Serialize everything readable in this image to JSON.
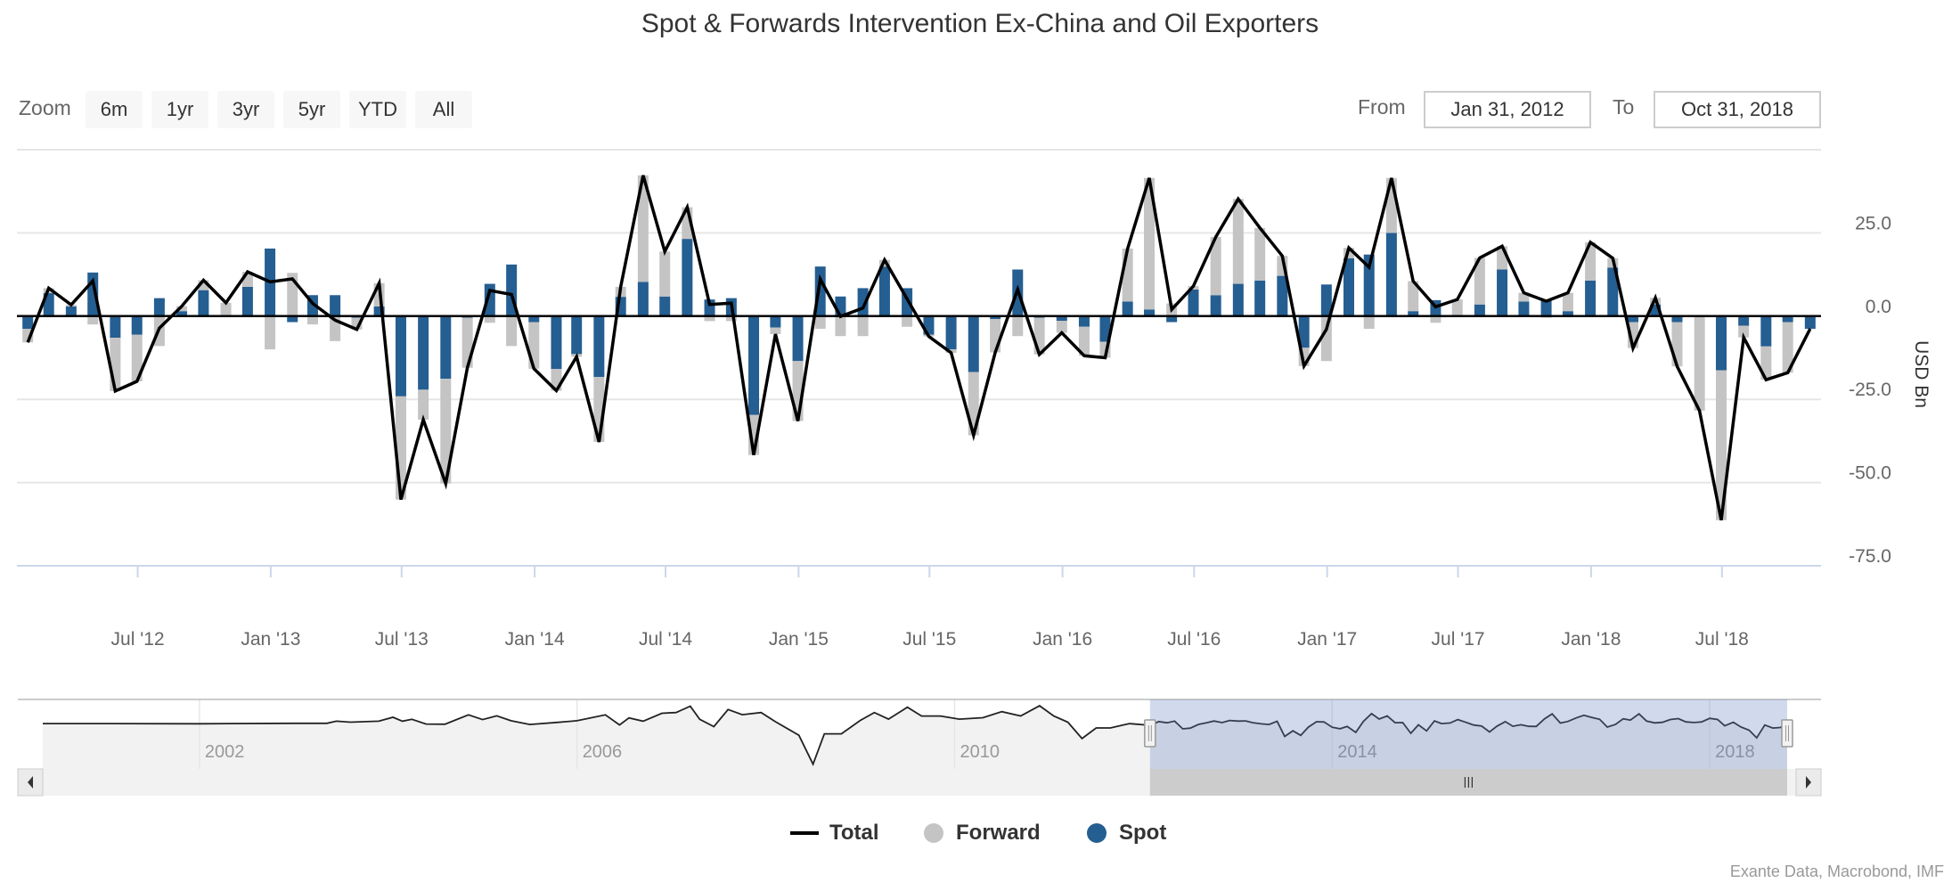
{
  "title": "Spot & Forwards Intervention Ex-China and Oil Exporters",
  "range_selector": {
    "zoom_label": "Zoom",
    "buttons": [
      "6m",
      "1yr",
      "3yr",
      "5yr",
      "YTD",
      "All"
    ],
    "from_label": "From",
    "from_value": "Jan 31, 2012",
    "to_label": "To",
    "to_value": "Oct 31, 2018"
  },
  "legend": {
    "items": [
      {
        "label": "Total",
        "symbol": "line",
        "color": "#000000"
      },
      {
        "label": "Forward",
        "symbol": "circle",
        "color": "#c4c4c4"
      },
      {
        "label": "Spot",
        "symbol": "circle",
        "color": "#255e91"
      }
    ]
  },
  "credits": "Exante Data, Macrobond, IMF",
  "chart_data": {
    "type": "stacked-column+line",
    "title": "Spot & Forwards Intervention Ex-China and Oil Exporters",
    "ylabel": "USD Bn",
    "ylim": [
      -75,
      50
    ],
    "xlim": [
      "2012-01-16",
      "2018-11-15"
    ],
    "grid": true,
    "legend_position": "bottom",
    "y_ticks": [
      {
        "value": 50,
        "label": ""
      },
      {
        "value": 25,
        "label": "25.0"
      },
      {
        "value": 0,
        "label": "0.0"
      },
      {
        "value": -25,
        "label": "-25.0"
      },
      {
        "value": -50,
        "label": "-50.0"
      },
      {
        "value": -75,
        "label": "-75.0"
      }
    ],
    "x_ticks": [
      {
        "date": "2012-07-01",
        "label": "Jul '12"
      },
      {
        "date": "2013-01-01",
        "label": "Jan '13"
      },
      {
        "date": "2013-07-01",
        "label": "Jul '13"
      },
      {
        "date": "2014-01-01",
        "label": "Jan '14"
      },
      {
        "date": "2014-07-01",
        "label": "Jul '14"
      },
      {
        "date": "2015-01-01",
        "label": "Jan '15"
      },
      {
        "date": "2015-07-01",
        "label": "Jul '15"
      },
      {
        "date": "2016-01-01",
        "label": "Jan '16"
      },
      {
        "date": "2016-07-01",
        "label": "Jul '16"
      },
      {
        "date": "2017-01-01",
        "label": "Jan '17"
      },
      {
        "date": "2017-07-01",
        "label": "Jul '17"
      },
      {
        "date": "2018-01-01",
        "label": "Jan '18"
      },
      {
        "date": "2018-07-01",
        "label": "Jul '18"
      }
    ],
    "start_month": "2012-01",
    "series": [
      {
        "name": "Spot",
        "type": "column",
        "color": "#255e91",
        "values": [
          -3.8,
          6.9,
          2.9,
          13.1,
          -6.5,
          -5.6,
          5.4,
          1.5,
          7.8,
          0,
          8.8,
          20.3,
          -1.8,
          6.3,
          6.3,
          -0.5,
          2.9,
          -24.1,
          -22.1,
          -18.8,
          -0.5,
          9.7,
          15.5,
          -1.8,
          -15.9,
          -11.4,
          -18.3,
          5.8,
          10.3,
          5.9,
          23.2,
          5.0,
          5.4,
          -29.7,
          -3.4,
          -13.5,
          14.9,
          5.9,
          8.4,
          14.9,
          8.4,
          -5.6,
          -10.0,
          -16.8,
          -0.9,
          14.0,
          -0.5,
          -1.4,
          -3.2,
          -7.7,
          4.4,
          2.0,
          -1.8,
          8.0,
          6.3,
          9.7,
          10.7,
          12.1,
          -9.5,
          9.5,
          17.4,
          18.5,
          25.0,
          1.5,
          4.8,
          0,
          3.5,
          14.0,
          4.4,
          5.0,
          1.5,
          10.7,
          14.6,
          -1.8,
          3.5,
          -1.8,
          0,
          -16.3,
          -2.9,
          -9.1,
          -1.8,
          -3.8
        ]
      },
      {
        "name": "Forward",
        "type": "column",
        "color": "#c4c4c4",
        "values": [
          -4.1,
          1.5,
          0.5,
          -2.5,
          -16.0,
          -14.0,
          -9.0,
          1.5,
          3.0,
          4.0,
          4.5,
          -10.0,
          13.0,
          -2.5,
          -7.5,
          -3.5,
          7.0,
          -31.0,
          -9.0,
          -31.5,
          -15.0,
          -2.0,
          -9.0,
          -14.0,
          -6.5,
          -0.8,
          -19.5,
          3.0,
          32.0,
          13.5,
          9.5,
          -1.5,
          -1.5,
          -12.0,
          -2.0,
          -18.0,
          -3.8,
          -6.0,
          -6.0,
          2.0,
          -3.2,
          -0.5,
          -1.0,
          -19.0,
          -10.0,
          -6.0,
          -11.0,
          -3.6,
          -8.7,
          -4.8,
          15.9,
          39.5,
          3.8,
          1.0,
          17.5,
          25.5,
          15.8,
          6.0,
          -5.5,
          -13.5,
          3.1,
          -3.8,
          16.5,
          9.0,
          -2.0,
          5.0,
          14.0,
          7.0,
          2.6,
          -0.5,
          5.5,
          11.5,
          2.8,
          -7.8,
          2.0,
          -13.3,
          -28.4,
          -45.0,
          -3.5,
          -10.0,
          -15.2,
          0
        ]
      },
      {
        "name": "Total",
        "type": "line",
        "color": "#000000",
        "values": [
          -7.9,
          8.4,
          3.4,
          10.6,
          -22.5,
          -19.6,
          -3.6,
          3.0,
          10.8,
          4.0,
          13.3,
          10.3,
          11.2,
          3.8,
          -1.2,
          -4.0,
          9.9,
          -55.1,
          -31.1,
          -50.3,
          -15.5,
          7.7,
          6.5,
          -15.8,
          -22.4,
          -12.2,
          -37.8,
          8.8,
          42.3,
          19.4,
          32.7,
          3.5,
          3.9,
          -41.7,
          -5.4,
          -31.5,
          11.1,
          -0.1,
          2.4,
          16.9,
          5.2,
          -6.1,
          -11.0,
          -35.8,
          -10.9,
          8.0,
          -11.5,
          -5.0,
          -11.9,
          -12.5,
          20.3,
          41.5,
          2.0,
          9.0,
          23.8,
          35.2,
          26.5,
          18.1,
          -15.0,
          -4.0,
          20.5,
          14.7,
          41.5,
          10.5,
          2.8,
          5.0,
          17.5,
          21.0,
          7.0,
          4.5,
          7.0,
          22.2,
          17.4,
          -9.6,
          5.5,
          -15.1,
          -28.4,
          -61.3,
          -6.4,
          -19.1,
          -17.0,
          -3.8
        ]
      }
    ],
    "navigator": {
      "year_range": [
        2000.34,
        2018.82
      ],
      "y_range": [
        -194,
        103
      ],
      "year_labels": [
        "2002",
        "2006",
        "2010",
        "2014",
        "2018"
      ],
      "history": [
        [
          2000.34,
          0
        ],
        [
          2001,
          0
        ],
        [
          2002,
          -1
        ],
        [
          2003,
          1
        ],
        [
          2003.35,
          1
        ],
        [
          2003.45,
          10
        ],
        [
          2003.6,
          6
        ],
        [
          2003.9,
          10
        ],
        [
          2004.05,
          27
        ],
        [
          2004.15,
          10
        ],
        [
          2004.25,
          18
        ],
        [
          2004.4,
          -2
        ],
        [
          2004.6,
          -3
        ],
        [
          2004.85,
          37
        ],
        [
          2005.0,
          17
        ],
        [
          2005.15,
          33
        ],
        [
          2005.3,
          12
        ],
        [
          2005.5,
          -4
        ],
        [
          2005.8,
          5
        ],
        [
          2006.0,
          12
        ],
        [
          2006.3,
          37
        ],
        [
          2006.45,
          -6
        ],
        [
          2006.55,
          24
        ],
        [
          2006.7,
          10
        ],
        [
          2006.9,
          44
        ],
        [
          2007.05,
          47
        ],
        [
          2007.2,
          74
        ],
        [
          2007.3,
          18
        ],
        [
          2007.45,
          -13
        ],
        [
          2007.6,
          60
        ],
        [
          2007.75,
          38
        ],
        [
          2007.95,
          47
        ],
        [
          2008.1,
          8
        ],
        [
          2008.35,
          -50
        ],
        [
          2008.5,
          -174
        ],
        [
          2008.62,
          -44
        ],
        [
          2008.8,
          -44
        ],
        [
          2009.0,
          13
        ],
        [
          2009.15,
          47
        ],
        [
          2009.3,
          19
        ],
        [
          2009.5,
          70
        ],
        [
          2009.65,
          32
        ],
        [
          2009.85,
          32
        ],
        [
          2010.05,
          19
        ],
        [
          2010.3,
          25
        ],
        [
          2010.5,
          51
        ],
        [
          2010.7,
          32
        ],
        [
          2010.9,
          76
        ],
        [
          2011.05,
          32
        ],
        [
          2011.2,
          6
        ],
        [
          2011.35,
          -64
        ],
        [
          2011.5,
          -19
        ],
        [
          2011.65,
          -19
        ],
        [
          2011.85,
          0
        ]
      ]
    }
  }
}
